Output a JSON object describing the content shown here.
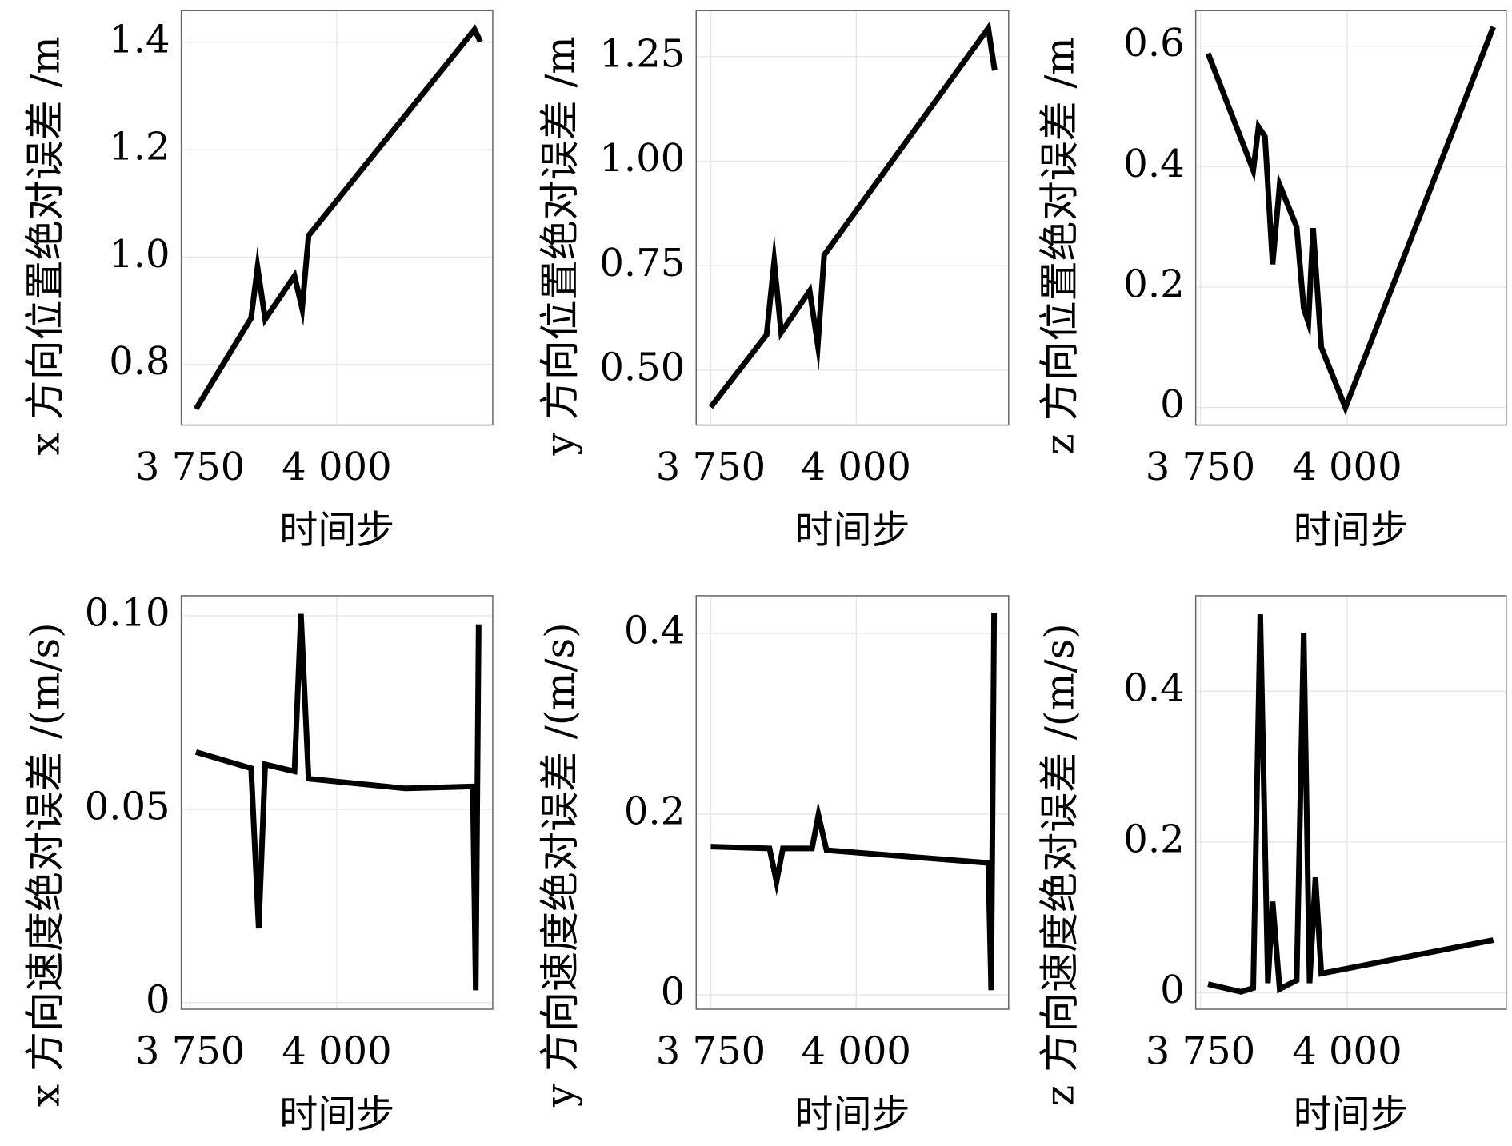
{
  "chart_data": [
    {
      "type": "line",
      "xlabel": "时间步",
      "ylabel": "x 方向位置绝对误差 /m",
      "color": "#000000",
      "grid": true,
      "x": [
        3760,
        3854,
        3865,
        3878,
        3928,
        3941,
        3952,
        4235,
        4245
      ],
      "values": [
        0.717,
        0.886,
        0.981,
        0.884,
        0.965,
        0.904,
        1.04,
        1.424,
        1.401
      ],
      "xlim": [
        3735,
        4266
      ],
      "ylim": [
        0.687,
        1.459
      ],
      "xticks": [
        {
          "value": 3750,
          "label": "3 750"
        },
        {
          "value": 4000,
          "label": "4 000"
        }
      ],
      "yticks": [
        0.8,
        {
          "value": 1.0,
          "label": "1.0"
        },
        1.2,
        1.4
      ]
    },
    {
      "type": "line",
      "xlabel": "时间步",
      "ylabel": "y 方向位置绝对误差 /m",
      "color": "#000000",
      "grid": true,
      "x": [
        3750,
        3846,
        3859,
        3871,
        3920,
        3934,
        3945,
        4227,
        4238
      ],
      "values": [
        0.412,
        0.585,
        0.76,
        0.59,
        0.69,
        0.56,
        0.776,
        1.318,
        1.217
      ],
      "xlim": [
        3725,
        4262
      ],
      "ylim": [
        0.369,
        1.36
      ],
      "xticks": [
        {
          "value": 3750,
          "label": "3 750"
        },
        {
          "value": 4000,
          "label": "4 000"
        }
      ],
      "yticks": [
        {
          "value": 0.5,
          "label": "0.50"
        },
        0.75,
        {
          "value": 1.0,
          "label": "1.00"
        },
        1.25
      ]
    },
    {
      "type": "line",
      "xlabel": "时间步",
      "ylabel": "z 方向位置绝对误差 /m",
      "color": "#000000",
      "grid": true,
      "x": [
        3763,
        3840,
        3849,
        3860,
        3873,
        3885,
        3914,
        3926,
        3934,
        3942,
        3956,
        3997,
        4249
      ],
      "values": [
        0.588,
        0.394,
        0.466,
        0.45,
        0.238,
        0.37,
        0.3,
        0.165,
        0.141,
        0.298,
        0.1,
        0.0,
        0.632
      ],
      "xlim": [
        3742,
        4271
      ],
      "ylim": [
        -0.029,
        0.659
      ],
      "xticks": [
        {
          "value": 3750,
          "label": "3 750"
        },
        {
          "value": 4000,
          "label": "4 000"
        }
      ],
      "yticks": [
        0,
        0.2,
        0.4,
        0.6
      ]
    },
    {
      "type": "line",
      "xlabel": "时间步",
      "ylabel": "x 方向速度绝对误差 /(m/s)",
      "color": "#000000",
      "grid": true,
      "x": [
        3760,
        3854,
        3867,
        3878,
        3928,
        3939,
        3952,
        4117,
        4232,
        4237,
        4242
      ],
      "values": [
        0.0648,
        0.0606,
        0.0192,
        0.0616,
        0.0598,
        0.1005,
        0.0579,
        0.0554,
        0.0559,
        0.0032,
        0.0978
      ],
      "xlim": [
        3735,
        4266
      ],
      "ylim": [
        -0.0017,
        0.1052
      ],
      "xticks": [
        {
          "value": 3750,
          "label": "3 750"
        },
        {
          "value": 4000,
          "label": "4 000"
        }
      ],
      "yticks": [
        0,
        0.05,
        {
          "value": 0.1,
          "label": "0.10"
        }
      ]
    },
    {
      "type": "line",
      "xlabel": "时间步",
      "ylabel": "y 方向速度绝对误差 /(m/s)",
      "color": "#000000",
      "grid": true,
      "x": [
        3750,
        3851,
        3863,
        3874,
        3924,
        3935,
        3949,
        4227,
        4232,
        4237
      ],
      "values": [
        0.164,
        0.162,
        0.125,
        0.162,
        0.162,
        0.199,
        0.16,
        0.146,
        0.005,
        0.423
      ],
      "xlim": [
        3725,
        4262
      ],
      "ylim": [
        -0.016,
        0.4416
      ],
      "xticks": [
        {
          "value": 3750,
          "label": "3 750"
        },
        {
          "value": 4000,
          "label": "4 000"
        }
      ],
      "yticks": [
        0,
        0.2,
        0.4
      ]
    },
    {
      "type": "line",
      "xlabel": "时间步",
      "ylabel": "z 方向速度绝对误差 /(m/s)",
      "color": "#000000",
      "grid": true,
      "x": [
        3763,
        3819,
        3840,
        3852,
        3865,
        3873,
        3885,
        3914,
        3926,
        3936,
        3946,
        3956,
        4249
      ],
      "values": [
        0.0115,
        0.0013,
        0.0064,
        0.502,
        0.0128,
        0.121,
        0.005,
        0.0166,
        0.477,
        0.0128,
        0.153,
        0.0256,
        0.07
      ],
      "xlim": [
        3742,
        4271
      ],
      "ylim": [
        -0.0217,
        0.5265
      ],
      "xticks": [
        {
          "value": 3750,
          "label": "3 750"
        },
        {
          "value": 4000,
          "label": "4 000"
        }
      ],
      "yticks": [
        0,
        0.2,
        0.4
      ]
    }
  ]
}
